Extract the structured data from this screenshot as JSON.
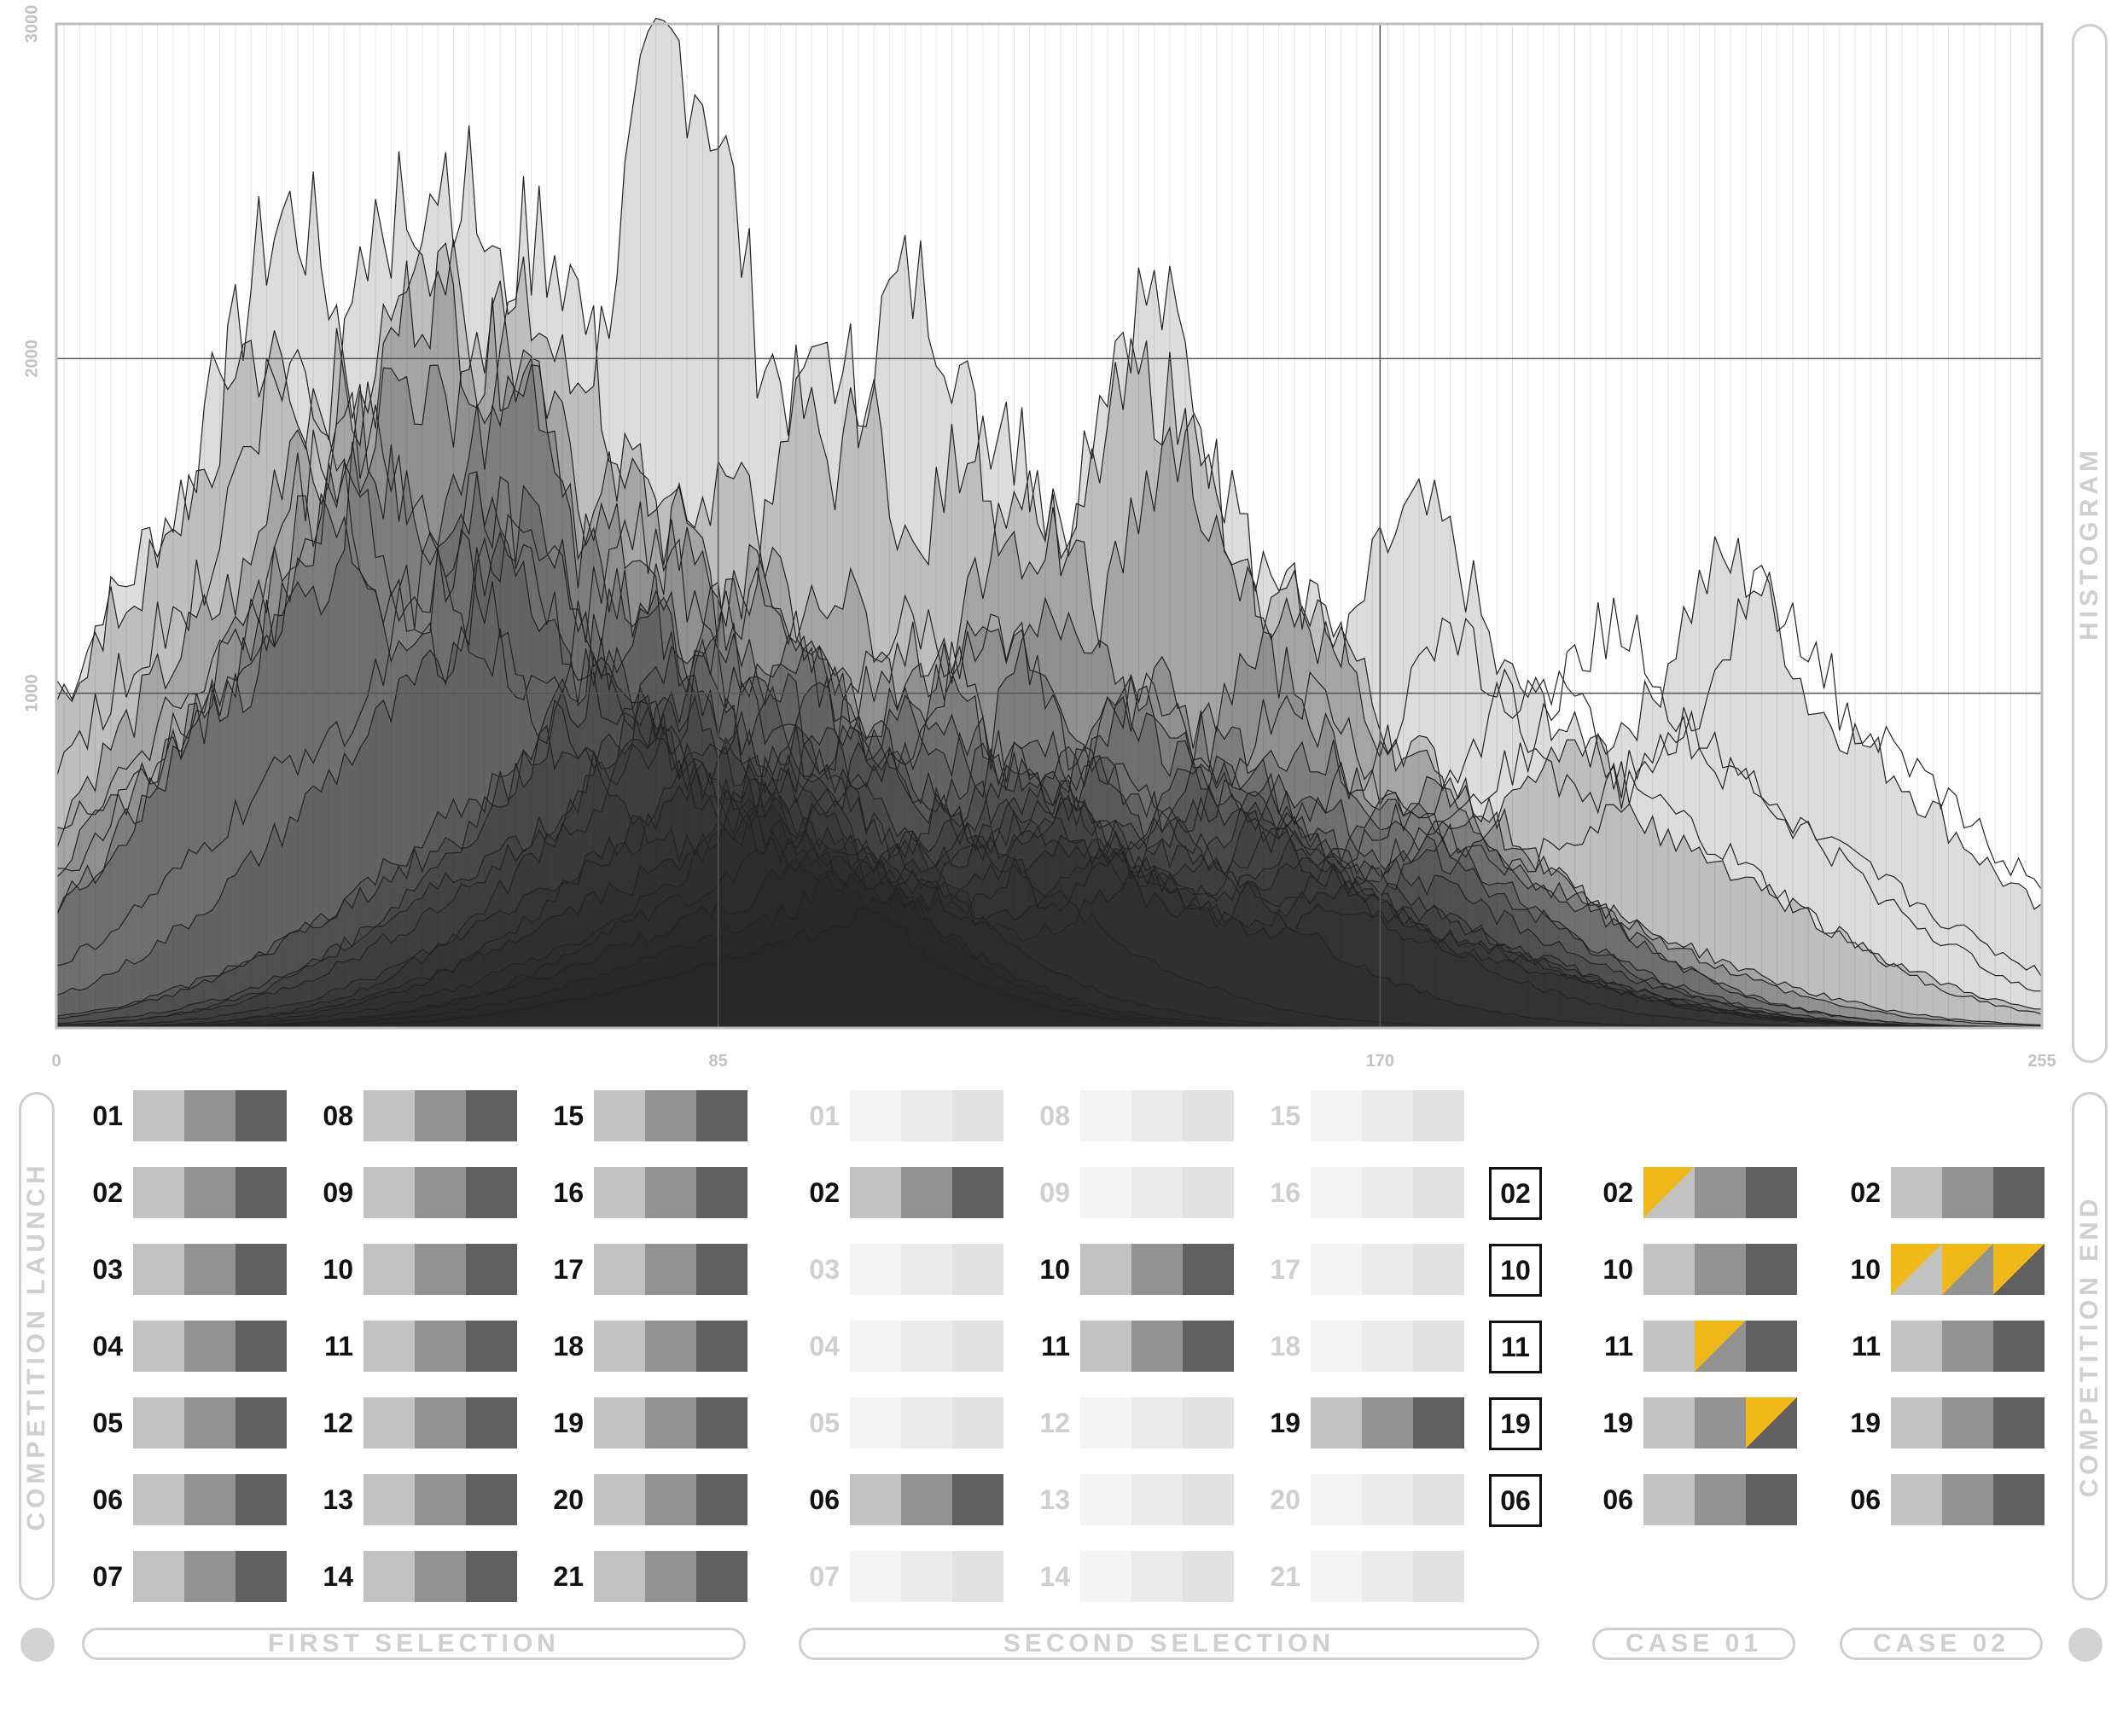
{
  "chart_data": {
    "type": "area",
    "title": "",
    "xlabel": "",
    "ylabel": "",
    "xlim": [
      0,
      255
    ],
    "ylim": [
      0,
      3000
    ],
    "x_ticks": [
      "0",
      "85",
      "170",
      "255"
    ],
    "y_ticks": [
      "1000",
      "2000",
      "3000"
    ],
    "grid": true,
    "series": [
      {
        "peaks": [
          [
            30,
            2450
          ],
          [
            60,
            2150
          ],
          [
            80,
            2950
          ],
          [
            110,
            2250
          ],
          [
            140,
            2200
          ],
          [
            175,
            1540
          ],
          [
            215,
            1400
          ]
        ]
      },
      {
        "peaks": [
          [
            25,
            2050
          ],
          [
            45,
            2480
          ],
          [
            60,
            2000
          ]
        ]
      },
      {
        "peaks": [
          [
            35,
            1950
          ],
          [
            48,
            2250
          ],
          [
            58,
            2050
          ],
          [
            75,
            1700
          ]
        ]
      },
      {
        "peaks": [
          [
            50,
            2600
          ],
          [
            62,
            2400
          ]
        ]
      },
      {
        "peaks": [
          [
            100,
            1980
          ],
          [
            120,
            1850
          ],
          [
            140,
            1950
          ],
          [
            160,
            1300
          ]
        ]
      },
      {
        "peaks": [
          [
            45,
            1960
          ],
          [
            56,
            2100
          ],
          [
            70,
            1500
          ]
        ]
      },
      {
        "peaks": [
          [
            35,
            1500
          ],
          [
            55,
            1550
          ],
          [
            75,
            1300
          ],
          [
            95,
            1150
          ]
        ]
      },
      {
        "peaks": [
          [
            85,
            1650
          ],
          [
            125,
            1600
          ],
          [
            145,
            1800
          ],
          [
            160,
            1250
          ]
        ]
      },
      {
        "peaks": [
          [
            60,
            1550
          ],
          [
            90,
            1350
          ],
          [
            120,
            1200
          ]
        ]
      },
      {
        "peaks": [
          [
            100,
            1300
          ],
          [
            130,
            1250
          ],
          [
            155,
            1100
          ]
        ]
      },
      {
        "peaks": [
          [
            110,
            1150
          ],
          [
            140,
            1050
          ],
          [
            160,
            850
          ]
        ]
      },
      {
        "peaks": [
          [
            70,
            1100
          ],
          [
            100,
            1000
          ],
          [
            140,
            950
          ]
        ]
      },
      {
        "peaks": [
          [
            80,
            950
          ],
          [
            110,
            950
          ],
          [
            150,
            850
          ],
          [
            175,
            700
          ]
        ]
      },
      {
        "peaks": [
          [
            75,
            900
          ],
          [
            125,
            850
          ],
          [
            150,
            800
          ],
          [
            195,
            850
          ]
        ]
      },
      {
        "peaks": [
          [
            65,
            850
          ],
          [
            95,
            850
          ],
          [
            130,
            800
          ],
          [
            160,
            700
          ]
        ]
      },
      {
        "peaks": [
          [
            85,
            800
          ],
          [
            120,
            800
          ],
          [
            150,
            700
          ],
          [
            180,
            600
          ]
        ]
      },
      {
        "peaks": [
          [
            90,
            700
          ],
          [
            125,
            750
          ],
          [
            155,
            650
          ]
        ]
      },
      {
        "peaks": [
          [
            95,
            600
          ],
          [
            130,
            650
          ],
          [
            160,
            550
          ]
        ]
      },
      {
        "peaks": [
          [
            100,
            550
          ],
          [
            130,
            560
          ],
          [
            160,
            480
          ]
        ]
      },
      {
        "peaks": [
          [
            105,
            500
          ],
          [
            135,
            520
          ],
          [
            165,
            420
          ]
        ]
      },
      {
        "peaks": [
          [
            110,
            420
          ],
          [
            140,
            450
          ],
          [
            165,
            360
          ]
        ]
      }
    ],
    "line_series": [
      {
        "peaks": [
          [
            30,
            1950
          ],
          [
            55,
            1600
          ],
          [
            110,
            1200
          ],
          [
            180,
            1150
          ],
          [
            220,
            1300
          ]
        ]
      },
      {
        "peaks": [
          [
            40,
            1800
          ],
          [
            75,
            1500
          ],
          [
            140,
            1000
          ],
          [
            200,
            1200
          ]
        ]
      },
      {
        "peaks": [
          [
            35,
            1700
          ],
          [
            60,
            1500
          ],
          [
            120,
            1200
          ],
          [
            190,
            1050
          ]
        ]
      },
      {
        "peaks": [
          [
            50,
            1400
          ],
          [
            90,
            1300
          ],
          [
            160,
            1000
          ],
          [
            210,
            900
          ]
        ]
      }
    ]
  },
  "labels": {
    "histogram": "HISTOGRAM",
    "competition_launch": "COMPETITION LAUNCH",
    "competition_end": "COMPETITION END",
    "first_selection": "FIRST SELECTION",
    "second_selection": "SECOND SELECTION",
    "case_01": "CASE 01",
    "case_02": "CASE 02"
  },
  "colors": {
    "swatch_light": "#c2c2c2",
    "swatch_mid": "#929292",
    "swatch_dark": "#606060",
    "faded_light": "#f3f3f3",
    "faded_mid": "#ebebeb",
    "faded_dark": "#e2e2e2",
    "highlight": "#f0b918"
  },
  "first_selection": [
    [
      "01",
      "02",
      "03",
      "04",
      "05",
      "06",
      "07"
    ],
    [
      "08",
      "09",
      "10",
      "11",
      "12",
      "13",
      "14"
    ],
    [
      "15",
      "16",
      "17",
      "18",
      "19",
      "20",
      "21"
    ]
  ],
  "second_selection": [
    [
      {
        "n": "01",
        "on": false
      },
      {
        "n": "02",
        "on": true
      },
      {
        "n": "03",
        "on": false
      },
      {
        "n": "04",
        "on": false
      },
      {
        "n": "05",
        "on": false
      },
      {
        "n": "06",
        "on": true
      },
      {
        "n": "07",
        "on": false
      }
    ],
    [
      {
        "n": "08",
        "on": false
      },
      {
        "n": "09",
        "on": false
      },
      {
        "n": "10",
        "on": true
      },
      {
        "n": "11",
        "on": true
      },
      {
        "n": "12",
        "on": false
      },
      {
        "n": "13",
        "on": false
      },
      {
        "n": "14",
        "on": false
      }
    ],
    [
      {
        "n": "15",
        "on": false
      },
      {
        "n": "16",
        "on": false
      },
      {
        "n": "17",
        "on": false
      },
      {
        "n": "18",
        "on": false
      },
      {
        "n": "19",
        "on": true
      },
      {
        "n": "20",
        "on": false
      },
      {
        "n": "21",
        "on": false
      }
    ]
  ],
  "finalists": [
    "02",
    "10",
    "11",
    "19",
    "06"
  ],
  "case_01": [
    {
      "n": "02",
      "highlight": [
        0
      ]
    },
    {
      "n": "10",
      "highlight": []
    },
    {
      "n": "11",
      "highlight": [
        1
      ]
    },
    {
      "n": "19",
      "highlight": [
        2
      ]
    },
    {
      "n": "06",
      "highlight": []
    }
  ],
  "case_02": [
    {
      "n": "02",
      "highlight": []
    },
    {
      "n": "10",
      "highlight": [
        0,
        1,
        2
      ]
    },
    {
      "n": "11",
      "highlight": []
    },
    {
      "n": "19",
      "highlight": []
    },
    {
      "n": "06",
      "highlight": []
    }
  ]
}
